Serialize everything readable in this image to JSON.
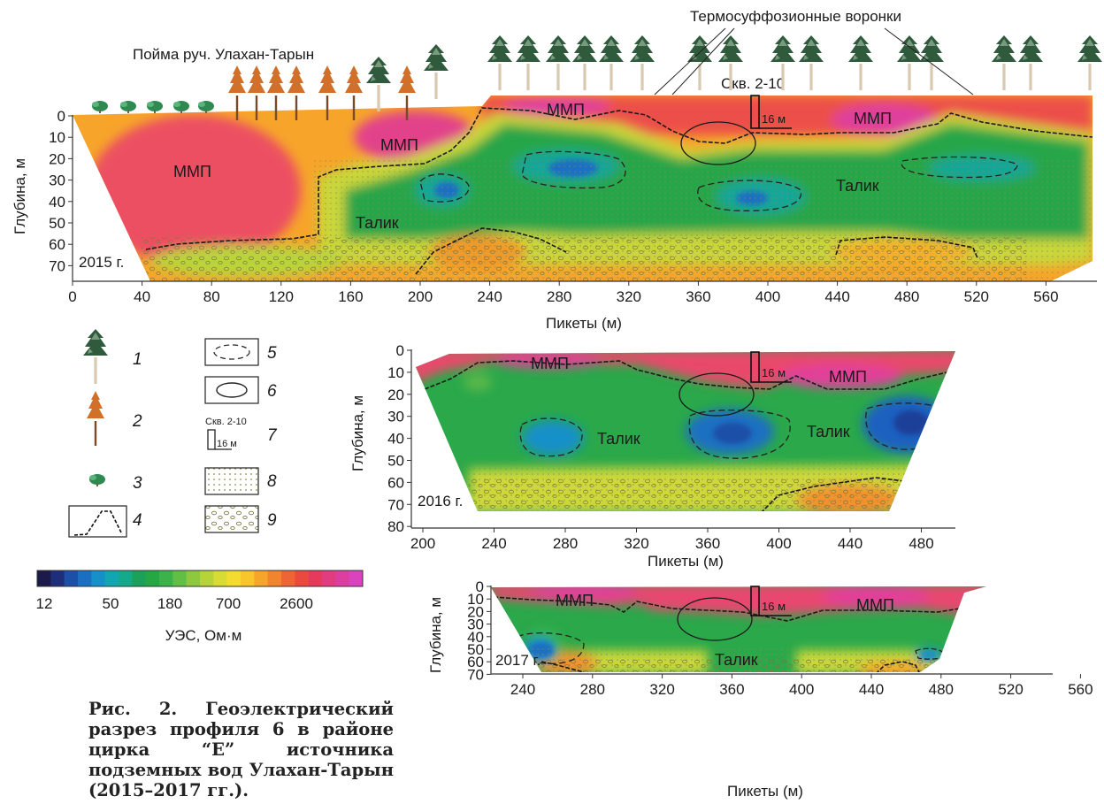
{
  "panels": [
    {
      "id": "p2015",
      "year_label": "2015 г.",
      "x_ticks": [
        "0",
        "40",
        "80",
        "120",
        "160",
        "200",
        "240",
        "280",
        "320",
        "360",
        "400",
        "440",
        "480",
        "520",
        "560"
      ],
      "y_ticks": [
        "0",
        "10",
        "20",
        "30",
        "40",
        "50",
        "60",
        "70"
      ],
      "x_label": "Пикеты (м)",
      "y_label": "Глубина, м",
      "zones": [
        "ММП",
        "ММП",
        "ММП",
        "ММП",
        "Талик",
        "Талик"
      ],
      "borehole_depth": "16 м",
      "borehole_name": "Скв. 2-10"
    },
    {
      "id": "p2016",
      "year_label": "2016 г.",
      "x_ticks": [
        "200",
        "240",
        "280",
        "320",
        "360",
        "400",
        "440",
        "480"
      ],
      "y_ticks": [
        "0",
        "10",
        "20",
        "30",
        "40",
        "50",
        "60",
        "70",
        "80"
      ],
      "x_label": "Пикеты (м)",
      "y_label": "Глубина, м",
      "zones": [
        "ММП",
        "ММП",
        "Талик",
        "Талик"
      ],
      "borehole_depth": "16 м"
    },
    {
      "id": "p2017",
      "year_label": "2017 г.",
      "x_ticks": [
        "240",
        "280",
        "320",
        "360",
        "400",
        "440",
        "480",
        "520",
        "560"
      ],
      "y_ticks": [
        "0",
        "10",
        "20",
        "30",
        "40",
        "50",
        "60",
        "70"
      ],
      "x_label": "Пикеты (м)",
      "y_label": "Глубина, м",
      "zones": [
        "ММП",
        "ММП",
        "Талик"
      ],
      "borehole_depth": "16 м"
    }
  ],
  "annotations": {
    "floodplain": "Пойма руч. Улахан-Тарын",
    "funnels": "Термосуффозионные воронки"
  },
  "legend": {
    "items": [
      "1",
      "2",
      "3",
      "4",
      "5",
      "6",
      "7",
      "8",
      "9"
    ],
    "borehole_name": "Скв. 2-10",
    "borehole_depth": "16 м"
  },
  "colorbar": {
    "ticks": [
      "12",
      "50",
      "180",
      "700",
      "2600"
    ],
    "label": "УЭС, Ом·м",
    "colors": [
      "#1b1a4a",
      "#1e2e7a",
      "#1e4fa8",
      "#1a6fc2",
      "#1690c8",
      "#12a7b0",
      "#14a98a",
      "#1ca15a",
      "#25a843",
      "#3bb34a",
      "#62bf45",
      "#8dc83f",
      "#b6d33a",
      "#d9db35",
      "#f3dc2e",
      "#f8c52a",
      "#f6a52a",
      "#f2842e",
      "#ee6434",
      "#ea4a3e",
      "#e63a5c",
      "#e23c80",
      "#dd3fa0",
      "#d944be"
    ]
  },
  "caption": "Рис. 2. Геоэлектрический разрез профиля 6 в районе цирка “E” источника подземных вод Улахан-Тарын (2015–2017 гг.)."
}
